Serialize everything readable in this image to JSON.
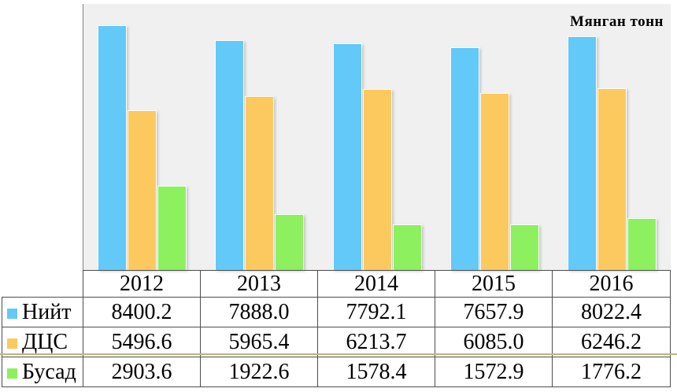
{
  "chart_data": {
    "type": "bar",
    "title": "Мянган тонн",
    "categories": [
      "2012",
      "2013",
      "2014",
      "2015",
      "2016"
    ],
    "series": [
      {
        "name": "Нийт",
        "color": "#62c9f8",
        "values": [
          8400.2,
          7888.0,
          7792.1,
          7657.9,
          8022.4
        ]
      },
      {
        "name": "ДЦС",
        "color": "#fcc95f",
        "values": [
          5496.6,
          5965.4,
          6213.7,
          6085.0,
          6246.2
        ]
      },
      {
        "name": "Бусад",
        "color": "#8df05f",
        "values": [
          2903.6,
          1922.6,
          1578.4,
          1572.9,
          1776.2
        ]
      }
    ],
    "xlabel": "",
    "ylabel": "",
    "ylim": [
      0,
      9000
    ],
    "grid": false,
    "legend_position": "table-left",
    "plot_background": "#f0f0f0"
  },
  "table": {
    "years": [
      "2012",
      "2013",
      "2014",
      "2015",
      "2016"
    ],
    "rows": [
      {
        "label": "Нийт",
        "values": [
          "8400.2",
          "7888.0",
          "7792.1",
          "7657.9",
          "8022.4"
        ]
      },
      {
        "label": "ДЦС",
        "values": [
          "5496.6",
          "5965.4",
          "6213.7",
          "6085.0",
          "6246.2"
        ]
      },
      {
        "label": "Бусад",
        "values": [
          "2903.6",
          "1922.6",
          "1578.4",
          "1572.9",
          "1776.2"
        ]
      }
    ]
  }
}
